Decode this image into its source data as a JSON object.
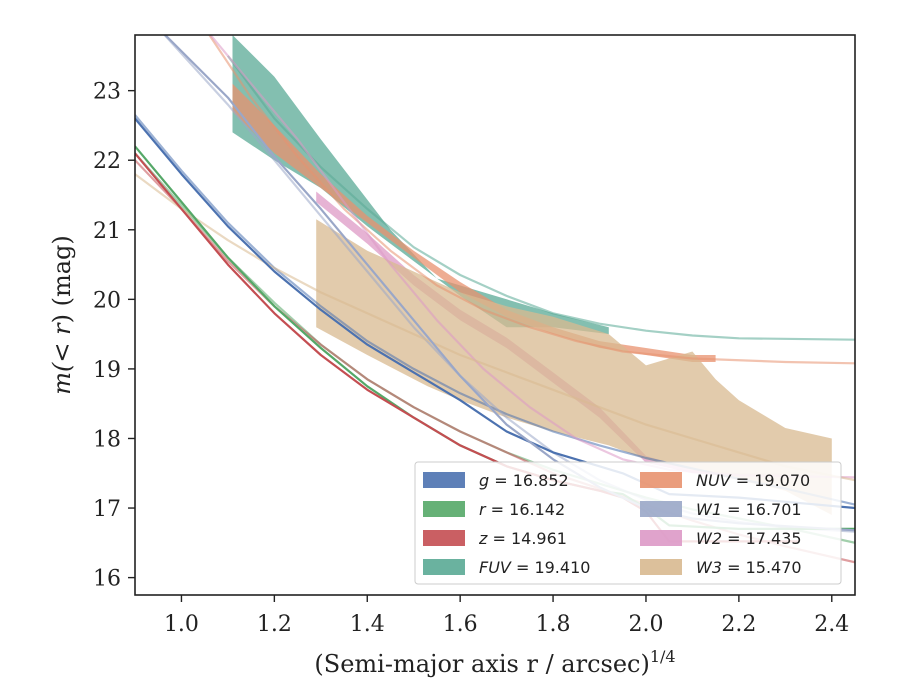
{
  "chart_data": {
    "type": "line",
    "xlabel": "(Semi-major axis r / arcsec)",
    "xlabel_exponent": "1/4",
    "ylabel_prefix": "m(",
    "ylabel_math": "< r",
    "ylabel_suffix": ") (mag)",
    "xlim": [
      0.9,
      2.45
    ],
    "ylim": [
      23.8,
      15.75
    ],
    "y_inverted": true,
    "xticks": [
      1.0,
      1.2,
      1.4,
      1.6,
      1.8,
      2.0,
      2.2,
      2.4
    ],
    "xtick_labels": [
      "1.0",
      "1.2",
      "1.4",
      "1.6",
      "1.8",
      "2.0",
      "2.2",
      "2.4"
    ],
    "yticks": [
      16,
      17,
      18,
      19,
      20,
      21,
      22,
      23
    ],
    "ytick_labels": [
      "16",
      "17",
      "18",
      "19",
      "20",
      "21",
      "22",
      "23"
    ],
    "grid": false,
    "legend_location": "lower-right",
    "legend_columns": 2,
    "series": [
      {
        "name": "g",
        "label_var": "g",
        "label_value": "= 16.852",
        "color": "#4c72b0",
        "fit": [
          [
            0.9,
            22.65
          ],
          [
            1.0,
            21.85
          ],
          [
            1.1,
            21.1
          ],
          [
            1.2,
            20.45
          ],
          [
            1.3,
            19.9
          ],
          [
            1.4,
            19.4
          ],
          [
            1.5,
            19.0
          ],
          [
            1.6,
            18.65
          ],
          [
            1.7,
            18.35
          ],
          [
            1.8,
            18.1
          ],
          [
            1.9,
            17.9
          ],
          [
            2.0,
            17.72
          ],
          [
            2.1,
            17.57
          ],
          [
            2.2,
            17.42
          ],
          [
            2.3,
            17.28
          ],
          [
            2.45,
            17.05
          ]
        ],
        "data": [
          [
            0.9,
            22.6
          ],
          [
            1.0,
            21.8
          ],
          [
            1.1,
            21.05
          ],
          [
            1.2,
            20.4
          ],
          [
            1.3,
            19.85
          ],
          [
            1.4,
            19.35
          ],
          [
            1.5,
            18.95
          ],
          [
            1.6,
            18.55
          ],
          [
            1.7,
            18.1
          ],
          [
            1.8,
            17.8
          ],
          [
            1.9,
            17.6
          ],
          [
            1.95,
            17.5
          ],
          [
            2.0,
            17.35
          ],
          [
            2.05,
            17.2
          ],
          [
            2.2,
            17.15
          ],
          [
            2.45,
            17.0
          ]
        ]
      },
      {
        "name": "r",
        "label_var": "r",
        "label_value": "= 16.142",
        "color": "#55a868",
        "fit": [
          [
            0.9,
            22.1
          ],
          [
            1.0,
            21.35
          ],
          [
            1.1,
            20.6
          ],
          [
            1.2,
            19.95
          ],
          [
            1.3,
            19.35
          ],
          [
            1.4,
            18.85
          ],
          [
            1.5,
            18.45
          ],
          [
            1.6,
            18.1
          ],
          [
            1.7,
            17.8
          ],
          [
            1.8,
            17.55
          ],
          [
            1.9,
            17.35
          ],
          [
            2.0,
            17.15
          ],
          [
            2.1,
            16.98
          ],
          [
            2.2,
            16.85
          ],
          [
            2.3,
            16.72
          ],
          [
            2.45,
            16.5
          ]
        ],
        "data": [
          [
            0.9,
            22.2
          ],
          [
            1.0,
            21.4
          ],
          [
            1.1,
            20.6
          ],
          [
            1.2,
            19.9
          ],
          [
            1.3,
            19.3
          ],
          [
            1.4,
            18.75
          ],
          [
            1.5,
            18.3
          ],
          [
            1.6,
            17.9
          ],
          [
            1.7,
            17.6
          ],
          [
            1.8,
            17.4
          ],
          [
            1.9,
            17.25
          ],
          [
            1.95,
            17.2
          ],
          [
            2.0,
            17.0
          ],
          [
            2.05,
            16.75
          ],
          [
            2.2,
            16.7
          ],
          [
            2.45,
            16.7
          ]
        ]
      },
      {
        "name": "z",
        "label_var": "z",
        "label_value": "= 14.961",
        "color": "#c44e52",
        "fit": [
          [
            0.9,
            22.0
          ],
          [
            1.0,
            21.3
          ],
          [
            1.1,
            20.55
          ],
          [
            1.2,
            19.9
          ],
          [
            1.3,
            19.35
          ],
          [
            1.4,
            18.85
          ],
          [
            1.5,
            18.45
          ],
          [
            1.6,
            18.1
          ],
          [
            1.7,
            17.8
          ],
          [
            1.8,
            17.5
          ],
          [
            1.9,
            17.28
          ],
          [
            2.0,
            17.05
          ],
          [
            2.1,
            16.82
          ],
          [
            2.2,
            16.62
          ],
          [
            2.3,
            16.45
          ],
          [
            2.45,
            16.22
          ]
        ],
        "data": [
          [
            0.9,
            22.1
          ],
          [
            1.0,
            21.3
          ],
          [
            1.1,
            20.5
          ],
          [
            1.2,
            19.8
          ],
          [
            1.3,
            19.2
          ],
          [
            1.4,
            18.7
          ],
          [
            1.5,
            18.3
          ],
          [
            1.6,
            17.9
          ],
          [
            1.7,
            17.6
          ],
          [
            1.8,
            17.4
          ],
          [
            1.9,
            17.25
          ],
          [
            1.95,
            17.15
          ],
          [
            2.0,
            16.95
          ],
          [
            2.05,
            16.52
          ],
          [
            2.2,
            16.52
          ],
          [
            2.33,
            16.52
          ]
        ]
      },
      {
        "name": "FUV",
        "label_var": "FUV",
        "label_value": "= 19.410",
        "color": "#5aaa95",
        "fit": [
          [
            1.1,
            23.5
          ],
          [
            1.2,
            22.6
          ],
          [
            1.3,
            21.9
          ],
          [
            1.4,
            21.3
          ],
          [
            1.5,
            20.75
          ],
          [
            1.6,
            20.35
          ],
          [
            1.7,
            20.05
          ],
          [
            1.8,
            19.8
          ],
          [
            1.9,
            19.65
          ],
          [
            2.0,
            19.55
          ],
          [
            2.1,
            19.48
          ],
          [
            2.2,
            19.44
          ],
          [
            2.45,
            19.42
          ]
        ],
        "band_upper": [
          [
            1.11,
            22.4
          ],
          [
            1.2,
            22.0
          ],
          [
            1.3,
            21.6
          ],
          [
            1.4,
            21.05
          ],
          [
            1.5,
            20.55
          ],
          [
            1.6,
            20.05
          ],
          [
            1.7,
            19.6
          ],
          [
            1.8,
            19.6
          ],
          [
            1.92,
            19.5
          ]
        ],
        "band_lower": [
          [
            1.11,
            23.8
          ],
          [
            1.2,
            23.2
          ],
          [
            1.3,
            22.3
          ],
          [
            1.45,
            21.0
          ],
          [
            1.55,
            20.3
          ],
          [
            1.7,
            20.0
          ],
          [
            1.8,
            19.8
          ],
          [
            1.92,
            19.6
          ]
        ]
      },
      {
        "name": "NUV",
        "label_var": "NUV",
        "label_value": "= 19.070",
        "color": "#e8926f",
        "fit": [
          [
            1.05,
            23.9
          ],
          [
            1.15,
            22.9
          ],
          [
            1.25,
            22.05
          ],
          [
            1.35,
            21.3
          ],
          [
            1.45,
            20.7
          ],
          [
            1.55,
            20.2
          ],
          [
            1.65,
            19.85
          ],
          [
            1.75,
            19.6
          ],
          [
            1.85,
            19.4
          ],
          [
            1.95,
            19.25
          ],
          [
            2.1,
            19.15
          ],
          [
            2.3,
            19.1
          ],
          [
            2.45,
            19.08
          ]
        ],
        "band_upper": [
          [
            1.11,
            22.7
          ],
          [
            1.2,
            22.1
          ],
          [
            1.3,
            21.6
          ],
          [
            1.4,
            21.1
          ],
          [
            1.5,
            20.6
          ],
          [
            1.6,
            20.1
          ],
          [
            1.7,
            19.75
          ],
          [
            1.8,
            19.5
          ],
          [
            1.9,
            19.3
          ],
          [
            2.0,
            19.2
          ],
          [
            2.1,
            19.1
          ],
          [
            2.15,
            19.1
          ]
        ],
        "band_lower": [
          [
            2.15,
            19.2
          ],
          [
            2.1,
            19.2
          ],
          [
            2.0,
            19.3
          ],
          [
            1.9,
            19.4
          ],
          [
            1.8,
            19.6
          ],
          [
            1.7,
            19.85
          ],
          [
            1.6,
            20.25
          ],
          [
            1.5,
            20.7
          ],
          [
            1.4,
            21.2
          ],
          [
            1.3,
            21.8
          ],
          [
            1.2,
            22.5
          ],
          [
            1.11,
            23.1
          ]
        ]
      },
      {
        "name": "W1",
        "label_var": "W1",
        "label_value": "= 16.701",
        "color": "#9aa7c8",
        "fit": [
          [
            0.95,
            23.9
          ],
          [
            1.1,
            22.8
          ],
          [
            1.2,
            22.0
          ],
          [
            1.3,
            21.2
          ],
          [
            1.4,
            20.4
          ],
          [
            1.5,
            19.6
          ],
          [
            1.6,
            18.9
          ],
          [
            1.7,
            18.3
          ],
          [
            1.8,
            17.8
          ],
          [
            1.9,
            17.4
          ],
          [
            2.0,
            17.12
          ],
          [
            2.1,
            16.92
          ],
          [
            2.2,
            16.8
          ],
          [
            2.3,
            16.72
          ],
          [
            2.45,
            16.66
          ]
        ],
        "data": [
          [
            0.95,
            23.9
          ],
          [
            1.1,
            22.9
          ],
          [
            1.2,
            22.05
          ],
          [
            1.3,
            21.3
          ],
          [
            1.4,
            20.5
          ],
          [
            1.5,
            19.7
          ],
          [
            1.6,
            18.9
          ],
          [
            1.7,
            18.2
          ],
          [
            1.8,
            17.7
          ],
          [
            1.9,
            17.3
          ],
          [
            2.0,
            17.0
          ],
          [
            2.1,
            16.85
          ],
          [
            2.2,
            16.78
          ],
          [
            2.45,
            16.68
          ]
        ]
      },
      {
        "name": "W2",
        "label_var": "W2",
        "label_value": "= 17.435",
        "color": "#dd99c6",
        "fit": [
          [
            1.05,
            23.9
          ],
          [
            1.15,
            23.1
          ],
          [
            1.25,
            22.3
          ],
          [
            1.35,
            21.4
          ],
          [
            1.45,
            20.5
          ],
          [
            1.55,
            19.7
          ],
          [
            1.65,
            19.0
          ],
          [
            1.75,
            18.45
          ],
          [
            1.85,
            18.0
          ],
          [
            1.95,
            17.7
          ],
          [
            2.05,
            17.55
          ],
          [
            2.2,
            17.47
          ],
          [
            2.45,
            17.44
          ]
        ],
        "band_upper": [
          [
            1.29,
            21.4
          ],
          [
            1.4,
            20.8
          ],
          [
            1.5,
            20.2
          ],
          [
            1.6,
            19.7
          ],
          [
            1.7,
            19.3
          ],
          [
            1.8,
            18.8
          ],
          [
            1.9,
            18.3
          ],
          [
            2.0,
            17.65
          ],
          [
            2.1,
            17.5
          ],
          [
            2.2,
            17.45
          ],
          [
            2.3,
            17.45
          ]
        ],
        "band_lower": [
          [
            2.3,
            17.5
          ],
          [
            2.2,
            17.5
          ],
          [
            2.1,
            17.55
          ],
          [
            2.0,
            17.75
          ],
          [
            1.9,
            18.45
          ],
          [
            1.8,
            18.95
          ],
          [
            1.7,
            19.45
          ],
          [
            1.6,
            19.85
          ],
          [
            1.5,
            20.35
          ],
          [
            1.4,
            20.95
          ],
          [
            1.29,
            21.55
          ]
        ]
      },
      {
        "name": "W3",
        "label_var": "W3",
        "label_value": "= 15.470",
        "color": "#d8b990",
        "fit": [
          [
            0.9,
            21.8
          ],
          [
            1.0,
            21.3
          ],
          [
            1.1,
            20.85
          ],
          [
            1.2,
            20.45
          ],
          [
            1.3,
            20.1
          ],
          [
            1.4,
            19.8
          ],
          [
            1.5,
            19.5
          ],
          [
            1.6,
            19.2
          ],
          [
            1.7,
            18.95
          ],
          [
            1.8,
            18.7
          ],
          [
            1.9,
            18.45
          ],
          [
            2.0,
            18.2
          ],
          [
            2.1,
            18.0
          ],
          [
            2.2,
            17.8
          ],
          [
            2.3,
            17.6
          ],
          [
            2.45,
            17.4
          ]
        ],
        "band_upper": [
          [
            1.29,
            19.6
          ],
          [
            1.4,
            19.2
          ],
          [
            1.53,
            18.75
          ],
          [
            1.6,
            18.55
          ],
          [
            1.7,
            18.3
          ],
          [
            1.8,
            18.1
          ],
          [
            1.92,
            17.9
          ],
          [
            2.0,
            17.7
          ],
          [
            2.1,
            17.55
          ],
          [
            2.2,
            17.4
          ],
          [
            2.3,
            17.25
          ],
          [
            2.4,
            16.9
          ]
        ],
        "band_lower": [
          [
            2.4,
            18.0
          ],
          [
            2.3,
            18.15
          ],
          [
            2.25,
            18.35
          ],
          [
            2.2,
            18.55
          ],
          [
            2.15,
            18.85
          ],
          [
            2.1,
            19.25
          ],
          [
            2.0,
            19.05
          ],
          [
            1.92,
            19.5
          ],
          [
            1.8,
            19.75
          ],
          [
            1.7,
            19.9
          ],
          [
            1.6,
            20.1
          ],
          [
            1.5,
            20.4
          ],
          [
            1.4,
            20.7
          ],
          [
            1.29,
            21.15
          ]
        ]
      }
    ]
  }
}
